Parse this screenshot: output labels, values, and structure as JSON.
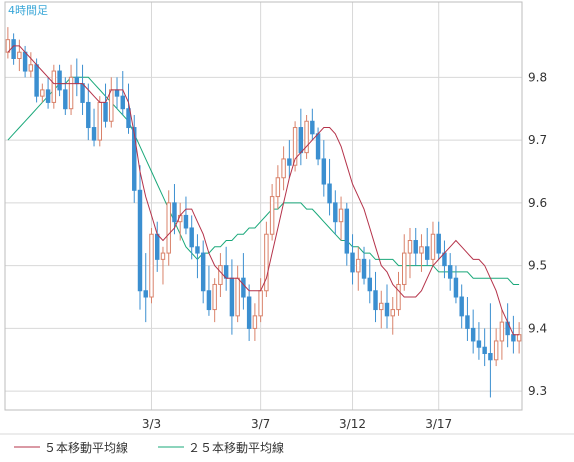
{
  "chart_data": {
    "type": "candlestick",
    "title": "4時間足",
    "y_ticks": [
      9.3,
      9.4,
      9.5,
      9.6,
      9.7,
      9.8
    ],
    "ylim": [
      9.27,
      9.92
    ],
    "x_ticks": [
      "3/3",
      "3/7",
      "3/12",
      "3/17"
    ],
    "grid": true,
    "legend_position": "bottom-left",
    "colors": {
      "up": "#d9826a",
      "down": "#3b8fd0",
      "ma5": "#b5334a",
      "ma25": "#1aa87a",
      "grid": "#d8d8d8",
      "frame": "#bdbdbd",
      "title": "#3aa7d8"
    },
    "series": [
      {
        "name": "５本移動平均線",
        "color": "#b5334a",
        "values": [
          9.84,
          9.85,
          9.85,
          9.84,
          9.83,
          9.82,
          9.81,
          9.8,
          9.79,
          9.79,
          9.79,
          9.79,
          9.79,
          9.79,
          9.78,
          9.77,
          9.76,
          9.76,
          9.78,
          9.78,
          9.78,
          9.76,
          9.71,
          9.65,
          9.61,
          9.58,
          9.55,
          9.54,
          9.55,
          9.56,
          9.58,
          9.59,
          9.59,
          9.57,
          9.55,
          9.52,
          9.5,
          9.49,
          9.48,
          9.48,
          9.48,
          9.47,
          9.46,
          9.46,
          9.46,
          9.48,
          9.52,
          9.56,
          9.6,
          9.64,
          9.67,
          9.68,
          9.69,
          9.7,
          9.71,
          9.72,
          9.72,
          9.71,
          9.69,
          9.66,
          9.63,
          9.61,
          9.59,
          9.56,
          9.53,
          9.5,
          9.49,
          9.47,
          9.46,
          9.45,
          9.45,
          9.45,
          9.46,
          9.48,
          9.5,
          9.51,
          9.52,
          9.53,
          9.54,
          9.53,
          9.52,
          9.51,
          9.51,
          9.5,
          9.48,
          9.46,
          9.43,
          9.41,
          9.39,
          9.39
        ]
      },
      {
        "name": "２５本移動平均線",
        "color": "#1aa87a",
        "values": [
          9.7,
          9.71,
          9.72,
          9.73,
          9.74,
          9.75,
          9.76,
          9.77,
          9.78,
          9.79,
          9.79,
          9.8,
          9.8,
          9.8,
          9.8,
          9.79,
          9.78,
          9.77,
          9.76,
          9.75,
          9.74,
          9.73,
          9.71,
          9.69,
          9.67,
          9.65,
          9.63,
          9.61,
          9.59,
          9.57,
          9.55,
          9.53,
          9.52,
          9.51,
          9.52,
          9.52,
          9.53,
          9.53,
          9.54,
          9.54,
          9.55,
          9.55,
          9.56,
          9.56,
          9.57,
          9.58,
          9.59,
          9.59,
          9.6,
          9.6,
          9.6,
          9.6,
          9.59,
          9.59,
          9.58,
          9.57,
          9.56,
          9.55,
          9.54,
          9.54,
          9.53,
          9.53,
          9.52,
          9.52,
          9.51,
          9.51,
          9.51,
          9.51,
          9.5,
          9.5,
          9.5,
          9.5,
          9.5,
          9.5,
          9.5,
          9.49,
          9.49,
          9.49,
          9.49,
          9.49,
          9.49,
          9.48,
          9.48,
          9.48,
          9.48,
          9.48,
          9.48,
          9.48,
          9.47,
          9.47
        ]
      }
    ],
    "ohlc": [
      [
        9.84,
        9.88,
        9.83,
        9.86
      ],
      [
        9.86,
        9.87,
        9.82,
        9.83
      ],
      [
        9.83,
        9.86,
        9.81,
        9.84
      ],
      [
        9.84,
        9.85,
        9.8,
        9.81
      ],
      [
        9.81,
        9.84,
        9.8,
        9.82
      ],
      [
        9.82,
        9.83,
        9.76,
        9.77
      ],
      [
        9.77,
        9.79,
        9.76,
        9.78
      ],
      [
        9.78,
        9.8,
        9.75,
        9.76
      ],
      [
        9.76,
        9.82,
        9.75,
        9.81
      ],
      [
        9.81,
        9.82,
        9.77,
        9.78
      ],
      [
        9.78,
        9.8,
        9.74,
        9.75
      ],
      [
        9.75,
        9.82,
        9.74,
        9.8
      ],
      [
        9.8,
        9.83,
        9.77,
        9.79
      ],
      [
        9.79,
        9.82,
        9.74,
        9.76
      ],
      [
        9.76,
        9.79,
        9.7,
        9.72
      ],
      [
        9.72,
        9.75,
        9.69,
        9.7
      ],
      [
        9.7,
        9.77,
        9.69,
        9.76
      ],
      [
        9.76,
        9.79,
        9.72,
        9.73
      ],
      [
        9.73,
        9.8,
        9.72,
        9.78
      ],
      [
        9.78,
        9.8,
        9.75,
        9.77
      ],
      [
        9.77,
        9.81,
        9.74,
        9.75
      ],
      [
        9.75,
        9.79,
        9.71,
        9.72
      ],
      [
        9.72,
        9.74,
        9.6,
        9.62
      ],
      [
        9.62,
        9.66,
        9.43,
        9.46
      ],
      [
        9.46,
        9.52,
        9.41,
        9.45
      ],
      [
        9.45,
        9.56,
        9.44,
        9.55
      ],
      [
        9.55,
        9.57,
        9.49,
        9.51
      ],
      [
        9.51,
        9.53,
        9.47,
        9.52
      ],
      [
        9.52,
        9.62,
        9.5,
        9.6
      ],
      [
        9.6,
        9.63,
        9.55,
        9.57
      ],
      [
        9.57,
        9.6,
        9.54,
        9.58
      ],
      [
        9.58,
        9.61,
        9.55,
        9.56
      ],
      [
        9.56,
        9.58,
        9.51,
        9.53
      ],
      [
        9.53,
        9.55,
        9.48,
        9.52
      ],
      [
        9.52,
        9.54,
        9.44,
        9.46
      ],
      [
        9.46,
        9.5,
        9.42,
        9.43
      ],
      [
        9.43,
        9.48,
        9.41,
        9.47
      ],
      [
        9.47,
        9.52,
        9.45,
        9.5
      ],
      [
        9.5,
        9.53,
        9.46,
        9.48
      ],
      [
        9.48,
        9.51,
        9.39,
        9.42
      ],
      [
        9.42,
        9.5,
        9.41,
        9.48
      ],
      [
        9.48,
        9.52,
        9.43,
        9.45
      ],
      [
        9.45,
        9.47,
        9.38,
        9.4
      ],
      [
        9.4,
        9.44,
        9.38,
        9.42
      ],
      [
        9.42,
        9.48,
        9.41,
        9.46
      ],
      [
        9.46,
        9.57,
        9.45,
        9.55
      ],
      [
        9.55,
        9.63,
        9.54,
        9.61
      ],
      [
        9.61,
        9.66,
        9.59,
        9.64
      ],
      [
        9.64,
        9.69,
        9.62,
        9.67
      ],
      [
        9.67,
        9.7,
        9.64,
        9.66
      ],
      [
        9.66,
        9.73,
        9.65,
        9.72
      ],
      [
        9.72,
        9.75,
        9.66,
        9.68
      ],
      [
        9.68,
        9.74,
        9.67,
        9.73
      ],
      [
        9.73,
        9.75,
        9.7,
        9.71
      ],
      [
        9.71,
        9.72,
        9.66,
        9.67
      ],
      [
        9.67,
        9.7,
        9.61,
        9.63
      ],
      [
        9.63,
        9.67,
        9.58,
        9.6
      ],
      [
        9.6,
        9.62,
        9.55,
        9.57
      ],
      [
        9.57,
        9.61,
        9.54,
        9.59
      ],
      [
        9.59,
        9.6,
        9.5,
        9.52
      ],
      [
        9.52,
        9.55,
        9.47,
        9.49
      ],
      [
        9.49,
        9.53,
        9.46,
        9.51
      ],
      [
        9.51,
        9.53,
        9.47,
        9.48
      ],
      [
        9.48,
        9.51,
        9.44,
        9.46
      ],
      [
        9.46,
        9.49,
        9.41,
        9.43
      ],
      [
        9.43,
        9.46,
        9.4,
        9.44
      ],
      [
        9.44,
        9.47,
        9.4,
        9.42
      ],
      [
        9.42,
        9.45,
        9.39,
        9.43
      ],
      [
        9.43,
        9.49,
        9.42,
        9.47
      ],
      [
        9.47,
        9.55,
        9.46,
        9.52
      ],
      [
        9.52,
        9.56,
        9.48,
        9.54
      ],
      [
        9.54,
        9.56,
        9.5,
        9.52
      ],
      [
        9.52,
        9.55,
        9.49,
        9.53
      ],
      [
        9.53,
        9.56,
        9.5,
        9.51
      ],
      [
        9.51,
        9.57,
        9.5,
        9.55
      ],
      [
        9.55,
        9.57,
        9.51,
        9.52
      ],
      [
        9.52,
        9.54,
        9.48,
        9.5
      ],
      [
        9.5,
        9.52,
        9.46,
        9.48
      ],
      [
        9.48,
        9.5,
        9.44,
        9.45
      ],
      [
        9.45,
        9.47,
        9.4,
        9.42
      ],
      [
        9.42,
        9.45,
        9.38,
        9.4
      ],
      [
        9.4,
        9.43,
        9.36,
        9.38
      ],
      [
        9.38,
        9.41,
        9.35,
        9.37
      ],
      [
        9.37,
        9.4,
        9.34,
        9.36
      ],
      [
        9.36,
        9.44,
        9.29,
        9.35
      ],
      [
        9.35,
        9.4,
        9.34,
        9.38
      ],
      [
        9.38,
        9.43,
        9.35,
        9.41
      ],
      [
        9.41,
        9.44,
        9.37,
        9.39
      ],
      [
        9.39,
        9.42,
        9.36,
        9.38
      ],
      [
        9.38,
        9.41,
        9.36,
        9.39
      ]
    ],
    "x_tick_candle_index": [
      25,
      44,
      60,
      75
    ]
  }
}
